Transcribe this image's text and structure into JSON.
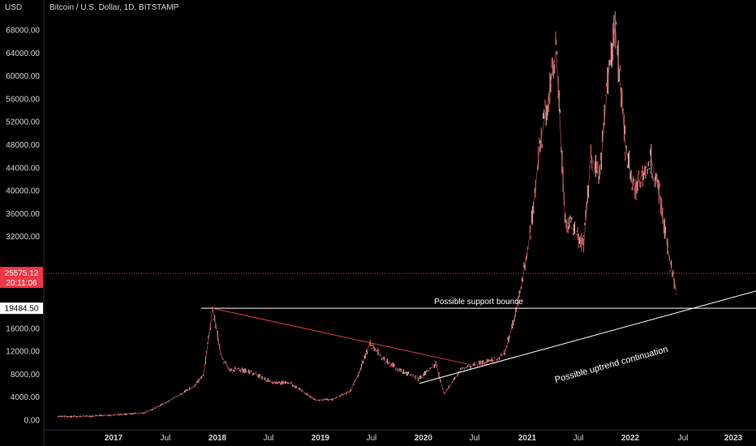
{
  "header": {
    "title": "Bitcoin / U.S. Dollar, 1D, BITSTAMP",
    "unit": "USD"
  },
  "colors": {
    "background": "#000000",
    "candle": "#e06666",
    "trendline": "#e03c3c",
    "annotation": "#ffffff",
    "price_line": "#f23645",
    "axis_text": "#d1d4dc"
  },
  "chart_data": {
    "type": "line",
    "title": "Bitcoin / U.S. Dollar, 1D, BITSTAMP",
    "ylabel": "USD",
    "ylim": [
      0,
      70000
    ],
    "y_ticks": [
      "0.00",
      "4000.00",
      "8000.00",
      "12000.00",
      "16000.00",
      "32000.00",
      "36000.00",
      "40000.00",
      "44000.00",
      "48000.00",
      "52000.00",
      "56000.00",
      "60000.00",
      "64000.00",
      "68000.00"
    ],
    "x_ticks": [
      "2017",
      "Jul",
      "2018",
      "Jul",
      "2019",
      "Jul",
      "2020",
      "Jul",
      "2021",
      "Jul",
      "2022",
      "Jul",
      "2023"
    ],
    "series": [
      {
        "x": [
          "2016-06",
          "2016-10",
          "2017-01",
          "2017-04",
          "2017-06",
          "2017-08",
          "2017-10",
          "2017-11",
          "2017-12-17",
          "2018-01",
          "2018-02",
          "2018-03",
          "2018-05",
          "2018-07",
          "2018-09",
          "2018-11",
          "2018-12-15",
          "2019-02",
          "2019-04",
          "2019-05",
          "2019-06-26",
          "2019-08",
          "2019-09",
          "2019-10",
          "2019-12",
          "2020-02",
          "2020-03-13",
          "2020-05",
          "2020-07",
          "2020-09",
          "2020-10",
          "2020-11",
          "2020-12",
          "2021-01",
          "2021-02",
          "2021-03",
          "2021-04-14",
          "2021-05",
          "2021-06",
          "2021-07-20",
          "2021-08",
          "2021-09",
          "2021-10",
          "2021-11-10",
          "2021-12",
          "2022-01",
          "2022-02",
          "2022-03",
          "2022-04",
          "2022-05",
          "2022-06-13"
        ],
        "values": [
          600,
          650,
          950,
          1200,
          2500,
          4200,
          6000,
          8000,
          19500,
          11500,
          8500,
          9000,
          8000,
          6500,
          6500,
          4500,
          3500,
          3600,
          5000,
          8000,
          13500,
          10500,
          9500,
          8500,
          7200,
          9800,
          4500,
          9000,
          9800,
          10500,
          11800,
          17000,
          24000,
          33000,
          47000,
          56000,
          64500,
          35000,
          33000,
          30500,
          46000,
          42000,
          60000,
          68500,
          48000,
          40000,
          43000,
          45500,
          39000,
          29000,
          22500
        ]
      }
    ],
    "price_label": {
      "value": "25575.12",
      "countdown": "20:11:06"
    },
    "level_label": "19484.50",
    "annotations": [
      {
        "text": "Possible support bounce",
        "kind": "horizontal",
        "y": 19484.5
      },
      {
        "text": "Possible uptrend continuation",
        "kind": "rising_trendline"
      }
    ],
    "grid": false,
    "legend": "none"
  }
}
